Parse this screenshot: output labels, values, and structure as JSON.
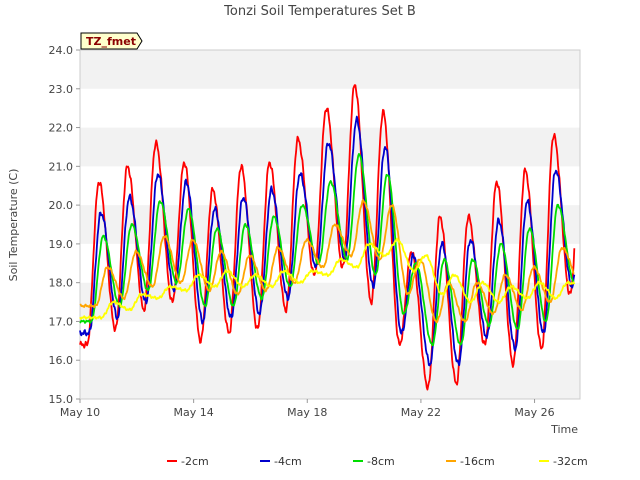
{
  "chart_data": {
    "type": "line",
    "title": "Tonzi Soil Temperatures Set B",
    "xlabel": "Time",
    "ylabel": "Soil Temperature (C)",
    "badge": "TZ_fmet",
    "ylim": [
      15.0,
      24.0
    ],
    "xlim_days": [
      0,
      17.6
    ],
    "y_ticks": [
      "15.0",
      "16.0",
      "17.0",
      "18.0",
      "19.0",
      "20.0",
      "21.0",
      "22.0",
      "23.0",
      "24.0"
    ],
    "x_ticks": [
      {
        "day": 0,
        "label": "May 10"
      },
      {
        "day": 4,
        "label": "May 14"
      },
      {
        "day": 8,
        "label": "May 18"
      },
      {
        "day": 12,
        "label": "May 22"
      },
      {
        "day": 16,
        "label": "May 26"
      }
    ],
    "days": [
      "May 10",
      "May 11",
      "May 12",
      "May 13",
      "May 14",
      "May 15",
      "May 16",
      "May 17",
      "May 18",
      "May 19",
      "May 20",
      "May 21",
      "May 22",
      "May 23",
      "May 24",
      "May 25",
      "May 26",
      "May 27"
    ],
    "grid": true,
    "legend_position": "bottom",
    "series": [
      {
        "name": "-2cm",
        "color": "#ff0000",
        "lag": 0.0,
        "mins": [
          16.4,
          16.8,
          17.3,
          17.5,
          16.5,
          16.7,
          16.8,
          17.3,
          18.2,
          18.4,
          17.5,
          16.4,
          15.3,
          15.4,
          16.4,
          15.9,
          16.3,
          17.7
        ],
        "maxs": [
          20.6,
          21.0,
          21.6,
          21.1,
          20.4,
          21.0,
          21.1,
          21.7,
          22.5,
          23.1,
          22.4,
          18.8,
          19.7,
          19.7,
          20.6,
          20.9,
          21.8,
          21.8
        ]
      },
      {
        "name": "-4cm",
        "color": "#0000cc",
        "lag": 0.07,
        "mins": [
          16.7,
          17.1,
          17.5,
          17.8,
          17.0,
          17.1,
          17.2,
          17.6,
          18.4,
          18.6,
          17.9,
          16.7,
          15.9,
          15.9,
          16.6,
          16.3,
          16.7,
          17.9
        ],
        "maxs": [
          19.8,
          20.2,
          20.8,
          20.6,
          19.9,
          20.2,
          20.4,
          20.8,
          21.6,
          22.2,
          21.5,
          18.7,
          19.0,
          19.1,
          19.6,
          20.1,
          20.9,
          20.9
        ]
      },
      {
        "name": "-8cm",
        "color": "#00dd00",
        "lag": 0.15,
        "mins": [
          17.0,
          17.4,
          17.8,
          18.0,
          17.4,
          17.4,
          17.6,
          17.9,
          18.5,
          18.6,
          18.2,
          17.2,
          16.4,
          16.4,
          16.9,
          16.8,
          17.0,
          18.0
        ],
        "maxs": [
          19.2,
          19.5,
          20.1,
          19.9,
          19.4,
          19.5,
          19.7,
          20.0,
          20.6,
          21.3,
          20.8,
          18.5,
          18.6,
          18.6,
          19.0,
          19.4,
          20.0,
          20.0
        ]
      },
      {
        "name": "-16cm",
        "color": "#ffa500",
        "lag": 0.3,
        "mins": [
          17.4,
          17.6,
          17.9,
          18.0,
          17.8,
          17.7,
          17.8,
          18.0,
          18.4,
          18.7,
          18.6,
          17.7,
          17.0,
          17.0,
          17.2,
          17.3,
          17.5,
          18.1
        ],
        "maxs": [
          18.4,
          18.8,
          19.2,
          19.1,
          18.8,
          18.7,
          18.9,
          19.1,
          19.5,
          20.1,
          20.0,
          18.6,
          18.0,
          18.0,
          18.2,
          18.4,
          18.9,
          19.1
        ]
      },
      {
        "name": "-32cm",
        "color": "#ffff00",
        "lag": 0.5,
        "mins": [
          17.1,
          17.3,
          17.6,
          17.8,
          17.9,
          17.9,
          17.9,
          18.0,
          18.2,
          18.4,
          18.7,
          18.3,
          17.7,
          17.5,
          17.5,
          17.6,
          17.6,
          17.9
        ],
        "maxs": [
          17.5,
          17.7,
          17.9,
          18.2,
          18.3,
          18.2,
          18.3,
          18.3,
          18.6,
          19.0,
          19.1,
          18.7,
          18.2,
          18.0,
          17.9,
          18.0,
          18.0,
          18.3
        ]
      }
    ]
  }
}
